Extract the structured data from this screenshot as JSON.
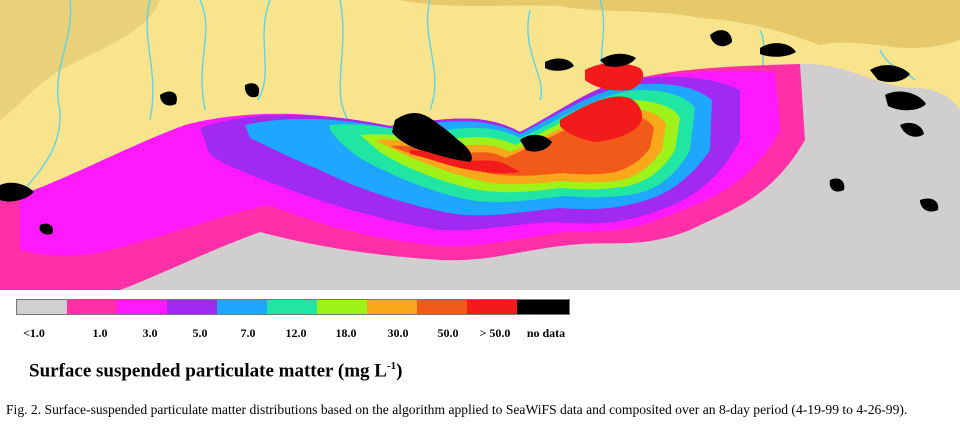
{
  "legend": {
    "bins": [
      {
        "label": "<1.0",
        "color": "#d1cfcf"
      },
      {
        "label": "1.0",
        "color": "#ff2fa8"
      },
      {
        "label": "3.0",
        "color": "#ff19ff"
      },
      {
        "label": "5.0",
        "color": "#a02af0"
      },
      {
        "label": "7.0",
        "color": "#1fa6ff"
      },
      {
        "label": "12.0",
        "color": "#21e5a3"
      },
      {
        "label": "18.0",
        "color": "#9ef21a"
      },
      {
        "label": "30.0",
        "color": "#f8a81a"
      },
      {
        "label": "50.0",
        "color": "#f25a1a"
      },
      {
        "label": "> 50.0",
        "color": "#f21a1a"
      },
      {
        "label": "no data",
        "color": "#000000"
      }
    ]
  },
  "figure": {
    "title_main": "Surface suspended particulate matter (mg L",
    "title_sup": "-1",
    "title_end": ")",
    "caption": "Fig. 2.  Surface-suspended particulate matter distributions based on the algorithm applied to SeaWiFS data and composited over an 8-day period (4-19-99 to 4-26-99)."
  },
  "colors": {
    "land": "#f9e48e",
    "upland": "#e5c96a",
    "river": "#5fd3e8",
    "water_gray": "#d0cece"
  }
}
